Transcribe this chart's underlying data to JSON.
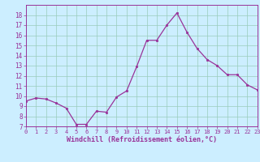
{
  "x_data": [
    0,
    1,
    2,
    3,
    4,
    5,
    6,
    7,
    8,
    9,
    10,
    11,
    12,
    13,
    14,
    15,
    16,
    17,
    18,
    19,
    20,
    21,
    22,
    23
  ],
  "y_data": [
    9.5,
    9.8,
    9.7,
    9.3,
    8.8,
    7.2,
    7.2,
    8.5,
    8.4,
    9.9,
    10.5,
    12.9,
    15.5,
    15.5,
    17.0,
    18.2,
    16.3,
    14.7,
    13.6,
    13.0,
    12.1,
    12.1,
    11.1,
    10.6
  ],
  "xlim": [
    0,
    23
  ],
  "ylim": [
    7,
    19
  ],
  "yticks": [
    7,
    8,
    9,
    10,
    11,
    12,
    13,
    14,
    15,
    16,
    17,
    18
  ],
  "xticks": [
    0,
    1,
    2,
    3,
    4,
    5,
    6,
    7,
    8,
    9,
    10,
    11,
    12,
    13,
    14,
    15,
    16,
    17,
    18,
    19,
    20,
    21,
    22,
    23
  ],
  "xlabel": "Windchill (Refroidissement éolien,°C)",
  "line_color": "#993399",
  "marker_color": "#993399",
  "bg_color": "#cceeff",
  "grid_color": "#99ccbb",
  "axis_color": "#993399",
  "tick_color": "#993399",
  "label_color": "#993399"
}
